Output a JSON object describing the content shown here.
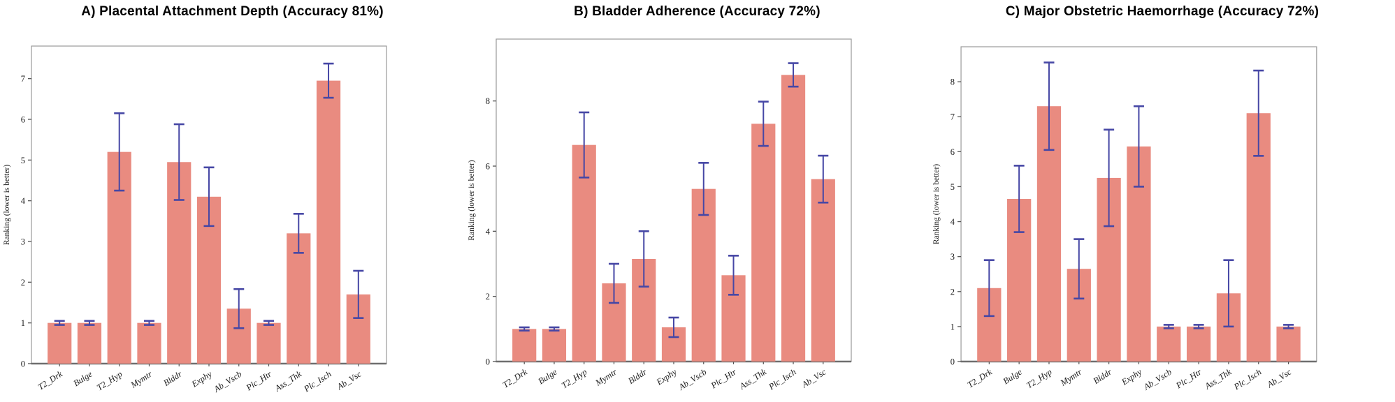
{
  "figure": {
    "background": "#ffffff",
    "bar_color": "#e98b80",
    "error_color": "#4647a5",
    "frame_color": "#9a9a9a",
    "spine_color": "#6e6e6e",
    "tick_text_color": "#1a1a1a"
  },
  "chart_data": [
    {
      "type": "bar",
      "title": "A) Placental Attachment Depth (Accuracy 81%)",
      "ylabel": "Ranking (lower is better)",
      "xlabel": "",
      "legend": null,
      "grid": false,
      "ylim": [
        0,
        7.8
      ],
      "yticks": [
        0,
        1,
        2,
        3,
        4,
        5,
        6,
        7
      ],
      "categories": [
        "T2_Drk",
        "Bulge",
        "T2_Hyp",
        "Mymtr",
        "Blddr",
        "Exphy",
        "Ab_Vscb",
        "Plc_Htr",
        "Ass_Thk",
        "Plc_Isch",
        "Ab_Vsc"
      ],
      "values": [
        1.0,
        1.0,
        5.2,
        1.0,
        4.95,
        4.1,
        1.35,
        1.0,
        3.2,
        6.95,
        1.7
      ],
      "errors": [
        0.05,
        0.05,
        0.95,
        0.05,
        0.93,
        0.72,
        0.48,
        0.05,
        0.48,
        0.42,
        0.58
      ]
    },
    {
      "type": "bar",
      "title": "B) Bladder Adherence (Accuracy 72%)",
      "ylabel": "Ranking (lower is better)",
      "xlabel": "",
      "legend": null,
      "grid": false,
      "ylim": [
        0,
        9.9
      ],
      "yticks": [
        0,
        2,
        4,
        6,
        8
      ],
      "categories": [
        "T2_Drk",
        "Bulge",
        "T2_Hyp",
        "Mymtr",
        "Blddr",
        "Exphy",
        "Ab_Vscb",
        "Plc_Htr",
        "Ass_Thk",
        "Plc_Isch",
        "Ab_Vsc"
      ],
      "values": [
        1.0,
        1.0,
        6.65,
        2.4,
        3.15,
        1.05,
        5.3,
        2.65,
        7.3,
        8.8,
        5.6
      ],
      "errors": [
        0.05,
        0.05,
        1.0,
        0.6,
        0.85,
        0.3,
        0.8,
        0.6,
        0.68,
        0.36,
        0.72
      ]
    },
    {
      "type": "bar",
      "title": "C) Major Obstetric Haemorrhage (Accuracy 72%)",
      "ylabel": "Ranking (lower is better)",
      "xlabel": "",
      "legend": null,
      "grid": false,
      "ylim": [
        0,
        9.0
      ],
      "yticks": [
        0,
        1,
        2,
        3,
        4,
        5,
        6,
        7,
        8
      ],
      "categories": [
        "T2_Drk",
        "Bulge",
        "T2_Hyp",
        "Mymtr",
        "Blddr",
        "Exphy",
        "Ab_Vscb",
        "Plc_Htr",
        "Ass_Thk",
        "Plc_Isch",
        "Ab_Vsc"
      ],
      "values": [
        2.1,
        4.65,
        7.3,
        2.65,
        5.25,
        6.15,
        1.0,
        1.0,
        1.95,
        7.1,
        1.0
      ],
      "errors": [
        0.8,
        0.95,
        1.25,
        0.85,
        1.38,
        1.15,
        0.05,
        0.05,
        0.95,
        1.22,
        0.05
      ]
    }
  ]
}
